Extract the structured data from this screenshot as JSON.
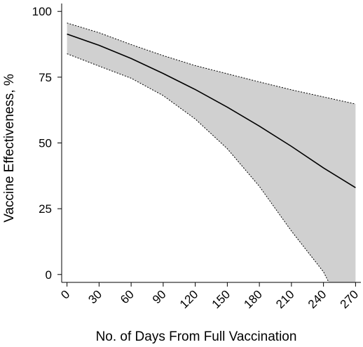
{
  "chart_data": {
    "type": "line",
    "title": "",
    "xlabel": "No. of Days From Full Vaccination",
    "ylabel": "Vaccine Effectiveness, %",
    "xlim": [
      -5,
      275
    ],
    "ylim": [
      -3,
      103
    ],
    "xticks": [
      0,
      30,
      60,
      90,
      120,
      150,
      180,
      210,
      240,
      270
    ],
    "yticks": [
      0,
      25,
      50,
      75,
      100
    ],
    "grid": false,
    "legend": "none",
    "colors": {
      "estimate": "#000000",
      "band": "#d0d0d0",
      "band_edge": "#000000"
    },
    "series": [
      {
        "role": "estimate",
        "x": [
          0,
          30,
          60,
          90,
          120,
          150,
          180,
          210,
          240,
          270
        ],
        "y": [
          91.4,
          87.1,
          82.1,
          76.4,
          70.3,
          63.6,
          56.4,
          48.7,
          40.5,
          33.0
        ]
      },
      {
        "role": "upper",
        "x": [
          0,
          30,
          60,
          90,
          120,
          150,
          180,
          210,
          240,
          270
        ],
        "y": [
          95.6,
          91.9,
          87.4,
          83.2,
          79.4,
          76.3,
          73.2,
          70.2,
          67.5,
          64.8
        ]
      },
      {
        "role": "lower",
        "x": [
          0,
          30,
          60,
          90,
          120,
          150,
          180,
          210,
          240,
          245,
          270
        ],
        "y": [
          83.9,
          79.2,
          74.6,
          68.0,
          59.1,
          47.8,
          33.5,
          16.5,
          1.0,
          -3.0,
          -3.0
        ]
      }
    ]
  }
}
